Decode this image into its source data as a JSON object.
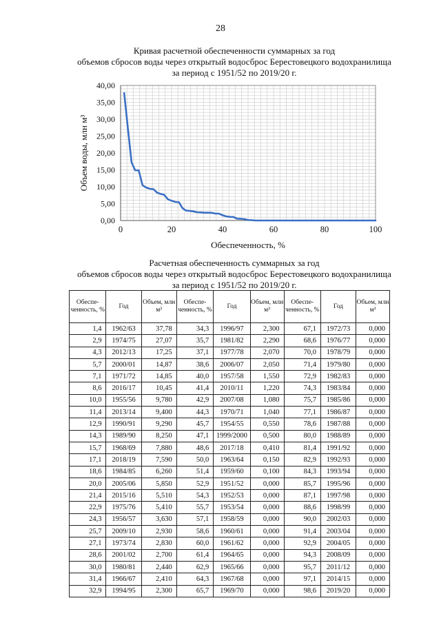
{
  "page_number": "28",
  "chart_title": {
    "line1": "Кривая расчетной обеспеченности суммарных за год",
    "line2": "объемов сбросов воды через открытый водосброс Берестовецкого водохранилища",
    "line3": "за период с 1951/52 по 2019/20 г."
  },
  "chart_data": {
    "type": "line",
    "xlabel": "Обеспеченность, %",
    "ylabel": "Объем воды, млн м³",
    "xlim": [
      0,
      100
    ],
    "ylim": [
      0,
      40
    ],
    "x_ticks": [
      "0",
      "20",
      "40",
      "60",
      "80",
      "100"
    ],
    "y_ticks": [
      "0,00",
      "5,00",
      "10,00",
      "15,00",
      "20,00",
      "25,00",
      "30,00",
      "35,00",
      "40,00"
    ],
    "grid": true,
    "color": "#3a6fc4",
    "x": [
      1.4,
      2.9,
      4.3,
      5.7,
      7.1,
      8.6,
      10.0,
      11.4,
      12.9,
      14.3,
      15.7,
      17.1,
      18.6,
      20.0,
      21.4,
      22.9,
      24.3,
      25.7,
      27.1,
      28.6,
      30.0,
      31.4,
      32.9,
      34.3,
      35.7,
      37.1,
      38.6,
      40.0,
      41.4,
      42.9,
      44.3,
      45.7,
      47.1,
      48.6,
      50.0,
      51.4,
      52.9,
      54.3,
      55.7,
      57.1,
      58.6,
      60.0,
      61.4,
      62.9,
      64.3,
      65.7,
      67.1,
      68.6,
      70.0,
      71.4,
      72.9,
      74.3,
      75.7,
      77.1,
      78.6,
      80.0,
      81.4,
      82.9,
      84.3,
      85.7,
      87.1,
      88.6,
      90.0,
      91.4,
      92.9,
      94.3,
      95.7,
      97.1,
      98.6
    ],
    "y": [
      37.78,
      27.07,
      17.25,
      14.87,
      14.85,
      10.45,
      9.78,
      9.4,
      9.29,
      8.25,
      7.88,
      7.59,
      6.26,
      5.85,
      5.51,
      5.41,
      3.63,
      2.93,
      2.83,
      2.7,
      2.44,
      2.41,
      2.3,
      2.3,
      2.29,
      2.07,
      2.05,
      1.55,
      1.22,
      1.08,
      1.04,
      0.55,
      0.5,
      0.41,
      0.15,
      0.1,
      0,
      0,
      0,
      0,
      0,
      0,
      0,
      0,
      0,
      0,
      0,
      0,
      0,
      0,
      0,
      0,
      0,
      0,
      0,
      0,
      0,
      0,
      0,
      0,
      0,
      0,
      0,
      0,
      0,
      0,
      0,
      0,
      0
    ]
  },
  "table_title": {
    "line1": "Расчетная обеспеченность суммарных за год",
    "line2": "объемов сбросов воды через открытый водосброс Берестовецкого водохранилища",
    "line3": "за период с 1951/52 по 2019/20 г."
  },
  "table": {
    "headers": [
      "Обеспе-ченность, %",
      "Год",
      "Объем, млн м³",
      "Обеспе-ченность, %",
      "Год",
      "Объем, млн м³",
      "Обеспе-ченность, %",
      "Год",
      "Объем, млн м³"
    ],
    "rows": [
      [
        "1,4",
        "1962/63",
        "37,78",
        "34,3",
        "1996/97",
        "2,300",
        "67,1",
        "1972/73",
        "0,000"
      ],
      [
        "2,9",
        "1974/75",
        "27,07",
        "35,7",
        "1981/82",
        "2,290",
        "68,6",
        "1976/77",
        "0,000"
      ],
      [
        "4,3",
        "2012/13",
        "17,25",
        "37,1",
        "1977/78",
        "2,070",
        "70,0",
        "1978/79",
        "0,000"
      ],
      [
        "5,7",
        "2000/01",
        "14,87",
        "38,6",
        "2006/07",
        "2,050",
        "71,4",
        "1979/80",
        "0,000"
      ],
      [
        "7,1",
        "1971/72",
        "14,85",
        "40,0",
        "1957/58",
        "1,550",
        "72,9",
        "1982/83",
        "0,000"
      ],
      [
        "8,6",
        "2016/17",
        "10,45",
        "41,4",
        "2010/11",
        "1,220",
        "74,3",
        "1983/84",
        "0,000"
      ],
      [
        "10,0",
        "1955/56",
        "9,780",
        "42,9",
        "2007/08",
        "1,080",
        "75,7",
        "1985/86",
        "0,000"
      ],
      [
        "11,4",
        "2013/14",
        "9,400",
        "44,3",
        "1970/71",
        "1,040",
        "77,1",
        "1986/87",
        "0,000"
      ],
      [
        "12,9",
        "1990/91",
        "9,290",
        "45,7",
        "1954/55",
        "0,550",
        "78,6",
        "1987/88",
        "0,000"
      ],
      [
        "14,3",
        "1989/90",
        "8,250",
        "47,1",
        "1999/2000",
        "0,500",
        "80,0",
        "1988/89",
        "0,000"
      ],
      [
        "15,7",
        "1968/69",
        "7,880",
        "48,6",
        "2017/18",
        "0,410",
        "81,4",
        "1991/92",
        "0,000"
      ],
      [
        "17,1",
        "2018/19",
        "7,590",
        "50,0",
        "1963/64",
        "0,150",
        "82,9",
        "1992/93",
        "0,000"
      ],
      [
        "18,6",
        "1984/85",
        "6,260",
        "51,4",
        "1959/60",
        "0,100",
        "84,3",
        "1993/94",
        "0,000"
      ],
      [
        "20,0",
        "2005/06",
        "5,850",
        "52,9",
        "1951/52",
        "0,000",
        "85,7",
        "1995/96",
        "0,000"
      ],
      [
        "21,4",
        "2015/16",
        "5,510",
        "54,3",
        "1952/53",
        "0,000",
        "87,1",
        "1997/98",
        "0,000"
      ],
      [
        "22,9",
        "1975/76",
        "5,410",
        "55,7",
        "1953/54",
        "0,000",
        "88,6",
        "1998/99",
        "0,000"
      ],
      [
        "24,3",
        "1956/57",
        "3,630",
        "57,1",
        "1958/59",
        "0,000",
        "90,0",
        "2002/03",
        "0,000"
      ],
      [
        "25,7",
        "2009/10",
        "2,930",
        "58,6",
        "1960/61",
        "0,000",
        "91,4",
        "2003/04",
        "0,000"
      ],
      [
        "27,1",
        "1973/74",
        "2,830",
        "60,0",
        "1961/62",
        "0,000",
        "92,9",
        "2004/05",
        "0,000"
      ],
      [
        "28,6",
        "2001/02",
        "2,700",
        "61,4",
        "1964/65",
        "0,000",
        "94,3",
        "2008/09",
        "0,000"
      ],
      [
        "30,0",
        "1980/81",
        "2,440",
        "62,9",
        "1965/66",
        "0,000",
        "95,7",
        "2011/12",
        "0,000"
      ],
      [
        "31,4",
        "1966/67",
        "2,410",
        "64,3",
        "1967/68",
        "0,000",
        "97,1",
        "2014/15",
        "0,000"
      ],
      [
        "32,9",
        "1994/95",
        "2,300",
        "65,7",
        "1969/70",
        "0,000",
        "98,6",
        "2019/20",
        "0,000"
      ]
    ]
  }
}
